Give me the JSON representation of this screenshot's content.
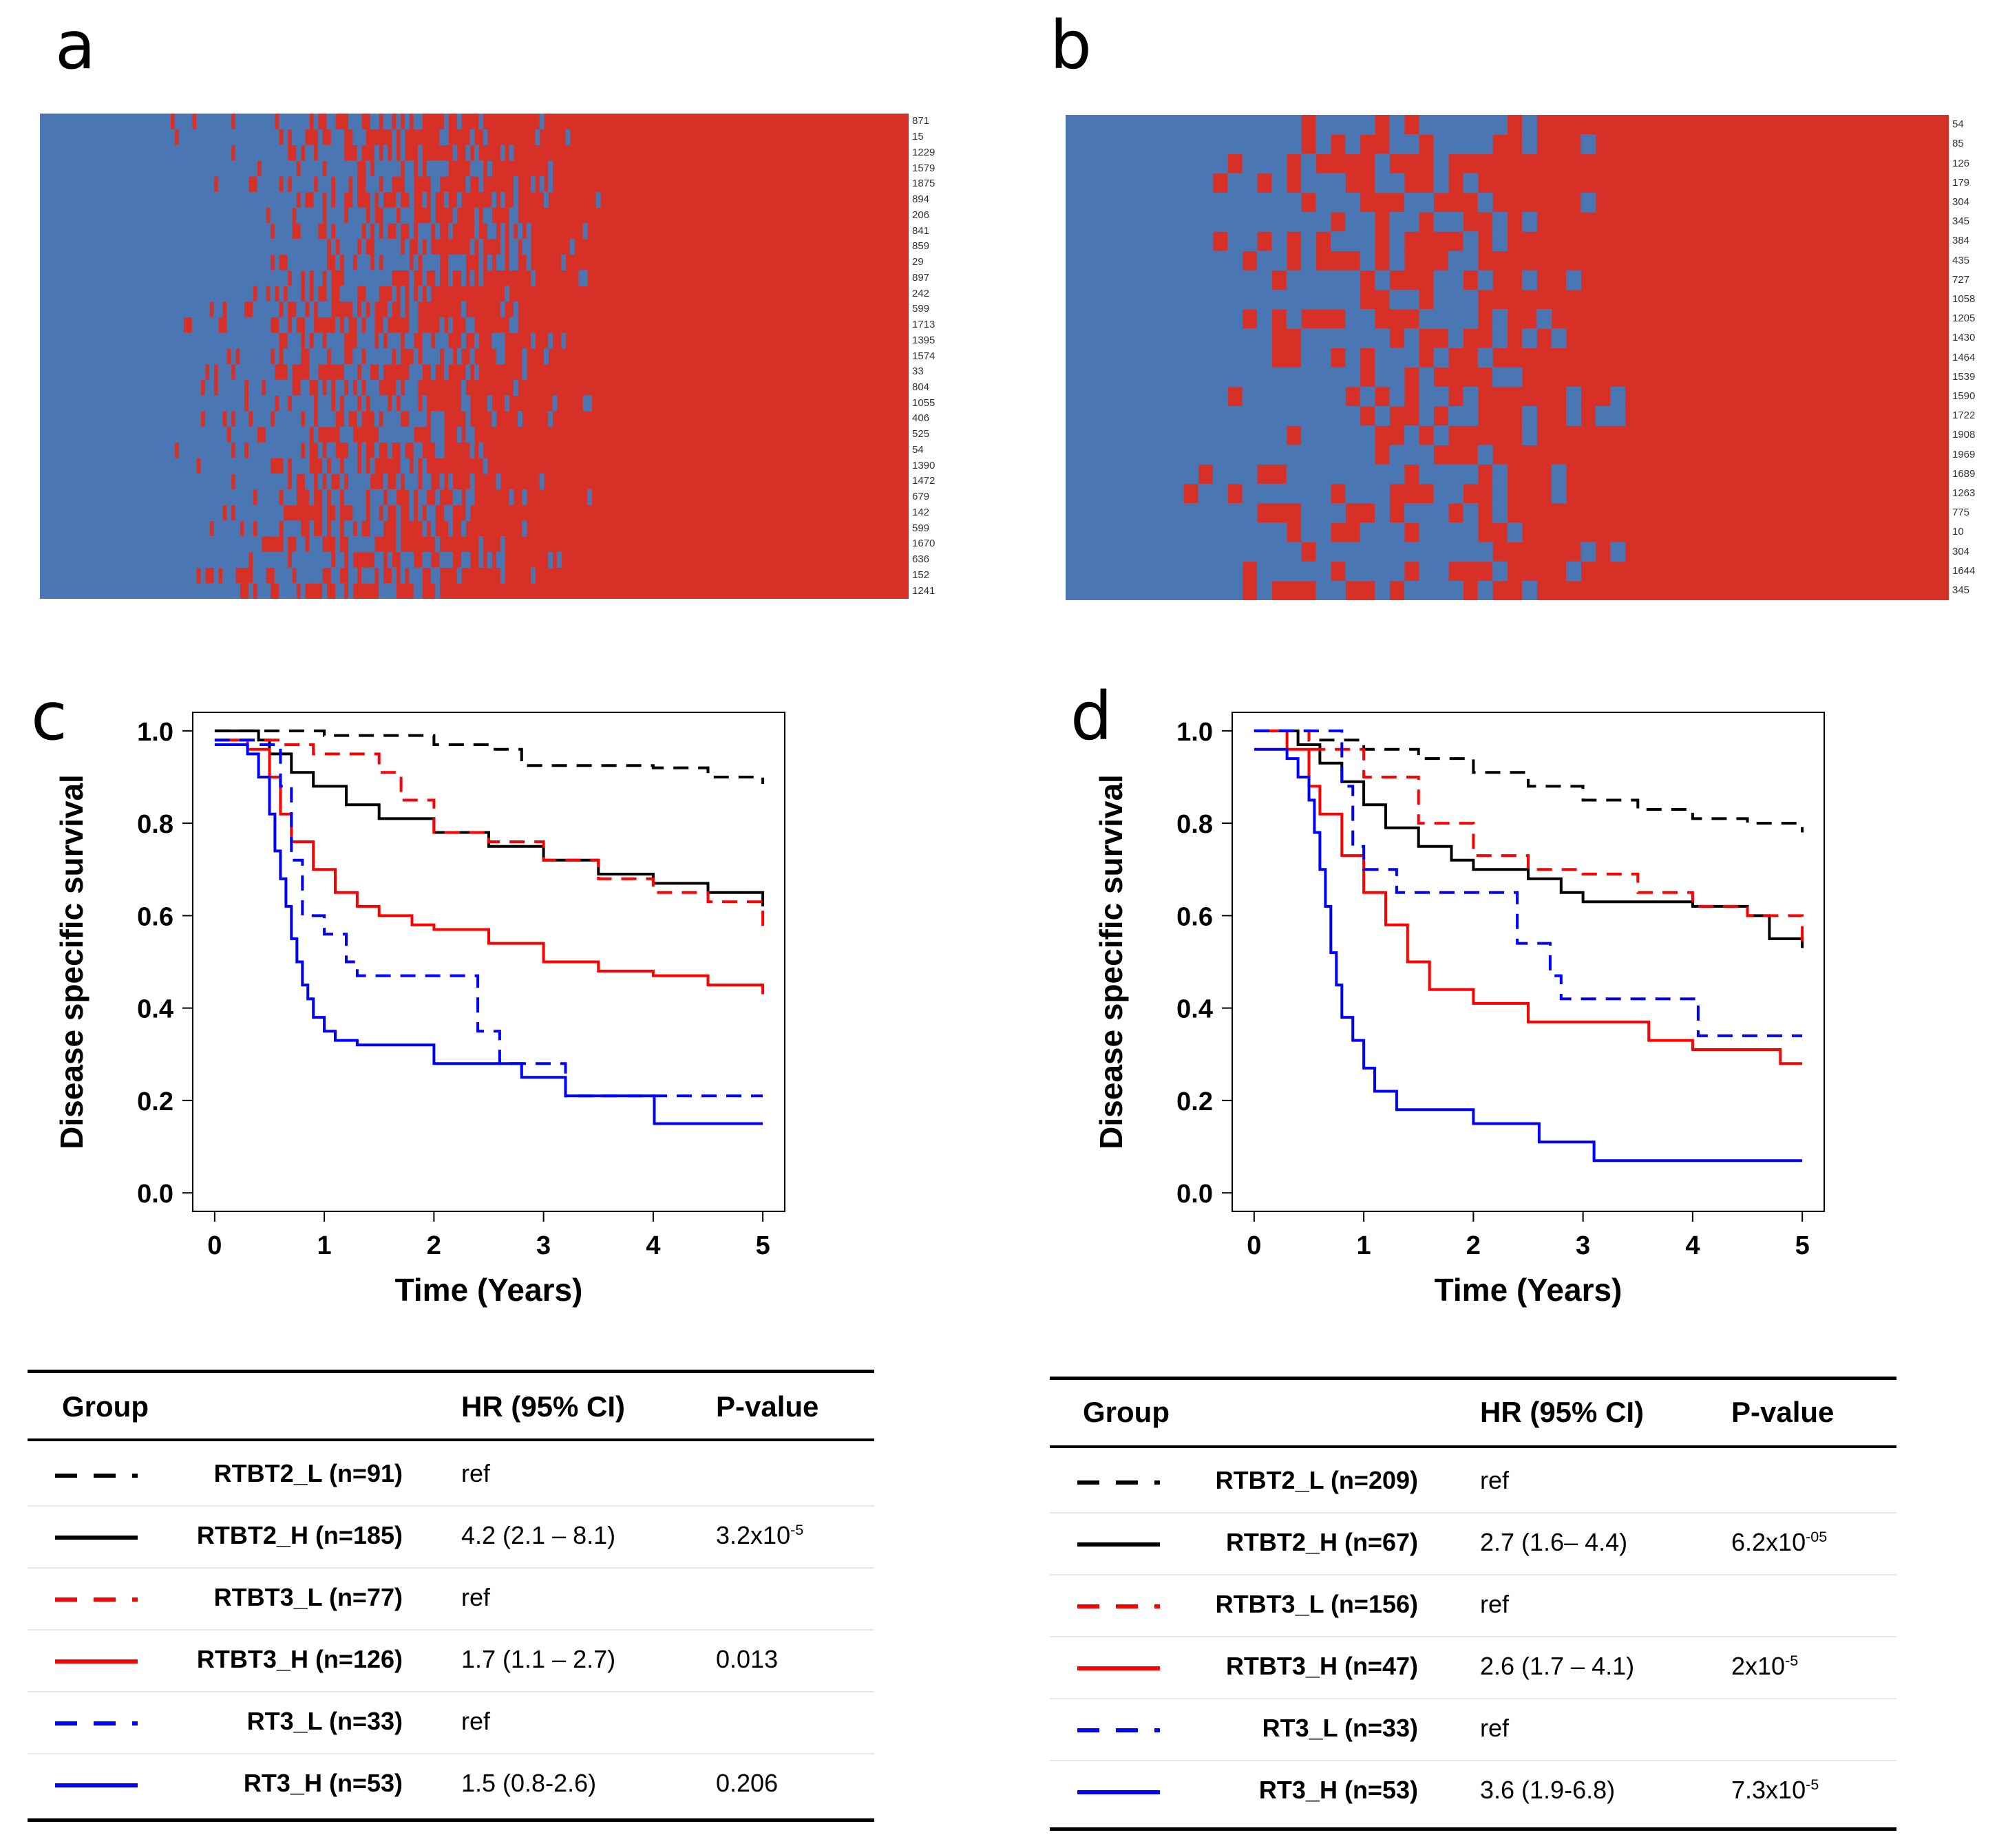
{
  "panels": {
    "a": "a",
    "b": "b",
    "c": "c",
    "d": "d"
  },
  "colors": {
    "blue": "#4a77b4",
    "red": "#d73027",
    "black": "#000000",
    "curve_red": "#ff0000",
    "curve_blue": "#0000ff"
  },
  "heatmap_a": {
    "row_labels": [
      "871",
      "15",
      "1229",
      "1579",
      "1875",
      "894",
      "206",
      "841",
      "859",
      "29",
      "897",
      "242",
      "599",
      "1713",
      "1395",
      "1574",
      "33",
      "804",
      "1055",
      "406",
      "525",
      "54",
      "1390",
      "1472",
      "679",
      "142",
      "599",
      "1670",
      "636",
      "152",
      "1241"
    ]
  },
  "heatmap_b": {
    "row_labels": [
      "54",
      "85",
      "126",
      "179",
      "304",
      "345",
      "384",
      "435",
      "727",
      "1058",
      "1205",
      "1430",
      "1464",
      "1539",
      "1590",
      "1722",
      "1908",
      "1969",
      "1689",
      "1263",
      "775",
      "10",
      "304",
      "1644",
      "345"
    ]
  },
  "chart_data": [
    {
      "type": "line",
      "panel": "c",
      "xlabel": "Time (Years)",
      "ylabel": "Disease specific survival",
      "xlim": [
        0,
        5
      ],
      "ylim": [
        0,
        1
      ],
      "xticks": [
        "0",
        "1",
        "2",
        "3",
        "4",
        "5"
      ],
      "yticks": [
        "0.0",
        "0.2",
        "0.4",
        "0.6",
        "0.8",
        "1.0"
      ],
      "series": [
        {
          "name": "RTBT2_L (n=91)",
          "color": "#000000",
          "dash": true,
          "x": [
            0,
            0.5,
            1,
            1.5,
            2,
            2.5,
            2.8,
            3.5,
            4,
            4.5,
            5
          ],
          "y": [
            1,
            1,
            0.99,
            0.99,
            0.97,
            0.96,
            0.925,
            0.925,
            0.92,
            0.9,
            0.885
          ]
        },
        {
          "name": "RTBT2_H (n=185)",
          "color": "#000000",
          "dash": false,
          "x": [
            0,
            0.4,
            0.5,
            0.7,
            0.9,
            1.2,
            1.5,
            2,
            2.5,
            3,
            3.5,
            4,
            4.5,
            5
          ],
          "y": [
            1,
            0.98,
            0.95,
            0.91,
            0.88,
            0.84,
            0.81,
            0.78,
            0.75,
            0.72,
            0.69,
            0.67,
            0.65,
            0.62
          ]
        },
        {
          "name": "RTBT3_L (n=77)",
          "color": "#ff0000",
          "dash": true,
          "x": [
            0,
            0.3,
            0.6,
            0.9,
            1.2,
            1.5,
            1.7,
            2,
            2.5,
            3,
            3.5,
            4,
            4.5,
            5
          ],
          "y": [
            0.98,
            0.98,
            0.97,
            0.95,
            0.95,
            0.91,
            0.85,
            0.78,
            0.76,
            0.72,
            0.68,
            0.65,
            0.63,
            0.57
          ]
        },
        {
          "name": "RTBT3_H (n=126)",
          "color": "#ff0000",
          "dash": false,
          "x": [
            0,
            0.3,
            0.5,
            0.6,
            0.7,
            0.9,
            1.1,
            1.3,
            1.5,
            1.8,
            2,
            2.5,
            3,
            3.5,
            4,
            4.5,
            5
          ],
          "y": [
            0.98,
            0.96,
            0.9,
            0.82,
            0.76,
            0.7,
            0.65,
            0.62,
            0.6,
            0.58,
            0.57,
            0.54,
            0.5,
            0.48,
            0.47,
            0.45,
            0.43
          ]
        },
        {
          "name": "RT3_L (n=33)",
          "color": "#0000ff",
          "dash": true,
          "x": [
            0,
            0.4,
            0.6,
            0.7,
            0.8,
            1,
            1.2,
            1.3,
            2.3,
            2.4,
            2.6,
            3.1,
            3.2,
            5
          ],
          "y": [
            0.98,
            0.97,
            0.88,
            0.72,
            0.6,
            0.56,
            0.5,
            0.47,
            0.47,
            0.35,
            0.28,
            0.28,
            0.21,
            0.21
          ]
        },
        {
          "name": "RT3_H (n=53)",
          "color": "#0000ff",
          "dash": false,
          "x": [
            0,
            0.3,
            0.4,
            0.5,
            0.55,
            0.6,
            0.65,
            0.7,
            0.75,
            0.8,
            0.85,
            0.9,
            1,
            1.1,
            1.3,
            2,
            2.8,
            3.2,
            4,
            4.01,
            5
          ],
          "y": [
            0.97,
            0.95,
            0.9,
            0.82,
            0.74,
            0.68,
            0.62,
            0.55,
            0.5,
            0.45,
            0.42,
            0.38,
            0.35,
            0.33,
            0.32,
            0.28,
            0.25,
            0.21,
            0.21,
            0.15,
            0.15
          ]
        }
      ]
    },
    {
      "type": "line",
      "panel": "d",
      "xlabel": "Time (Years)",
      "ylabel": "Disease specific survival",
      "xlim": [
        0,
        5
      ],
      "ylim": [
        0,
        1
      ],
      "xticks": [
        "0",
        "1",
        "2",
        "3",
        "4",
        "5"
      ],
      "yticks": [
        "0.0",
        "0.2",
        "0.4",
        "0.6",
        "0.8",
        "1.0"
      ],
      "series": [
        {
          "name": "RTBT2_L (n=209)",
          "color": "#000000",
          "dash": true,
          "x": [
            0,
            0.5,
            1,
            1.5,
            2,
            2.5,
            3,
            3.5,
            4,
            4.5,
            5
          ],
          "y": [
            1,
            0.98,
            0.96,
            0.94,
            0.91,
            0.88,
            0.85,
            0.83,
            0.81,
            0.8,
            0.78
          ]
        },
        {
          "name": "RTBT2_H (n=67)",
          "color": "#000000",
          "dash": false,
          "x": [
            0,
            0.4,
            0.6,
            0.8,
            1,
            1.2,
            1.5,
            1.8,
            2,
            2.5,
            2.8,
            3,
            3.5,
            4,
            4.5,
            4.7,
            5
          ],
          "y": [
            1,
            0.97,
            0.93,
            0.89,
            0.84,
            0.79,
            0.75,
            0.72,
            0.7,
            0.68,
            0.65,
            0.63,
            0.63,
            0.62,
            0.6,
            0.55,
            0.53
          ]
        },
        {
          "name": "RTBT3_L (n=156)",
          "color": "#ff0000",
          "dash": true,
          "x": [
            0,
            0.5,
            1,
            1.5,
            2,
            2.5,
            3,
            3.5,
            4,
            4.5,
            5
          ],
          "y": [
            1,
            0.96,
            0.9,
            0.8,
            0.73,
            0.7,
            0.69,
            0.65,
            0.62,
            0.6,
            0.53
          ]
        },
        {
          "name": "RTBT3_H (n=47)",
          "color": "#ff0000",
          "dash": false,
          "x": [
            0,
            0.3,
            0.5,
            0.6,
            0.8,
            1,
            1.2,
            1.4,
            1.6,
            2,
            2.5,
            3,
            3.6,
            4,
            4.8,
            5
          ],
          "y": [
            1,
            0.96,
            0.88,
            0.82,
            0.73,
            0.65,
            0.58,
            0.5,
            0.44,
            0.41,
            0.37,
            0.37,
            0.33,
            0.31,
            0.28,
            0.28
          ]
        },
        {
          "name": "RT3_L (n=33)",
          "color": "#0000ff",
          "dash": true,
          "x": [
            0,
            0.7,
            0.8,
            0.9,
            1,
            1.3,
            2.3,
            2.4,
            2.7,
            2.8,
            4,
            4.05,
            5
          ],
          "y": [
            1,
            1,
            0.88,
            0.75,
            0.7,
            0.65,
            0.65,
            0.54,
            0.47,
            0.42,
            0.42,
            0.34,
            0.34
          ]
        },
        {
          "name": "RT3_H (n=53)",
          "color": "#0000ff",
          "dash": false,
          "x": [
            0,
            0.3,
            0.4,
            0.5,
            0.55,
            0.6,
            0.65,
            0.7,
            0.75,
            0.8,
            0.9,
            1,
            1.1,
            1.3,
            2,
            2.6,
            3,
            3.1,
            5
          ],
          "y": [
            0.96,
            0.94,
            0.9,
            0.85,
            0.78,
            0.7,
            0.62,
            0.52,
            0.45,
            0.38,
            0.33,
            0.27,
            0.22,
            0.18,
            0.15,
            0.11,
            0.11,
            0.07,
            0.07
          ]
        }
      ]
    }
  ],
  "table_c": {
    "headers": {
      "group": "Group",
      "hr": "HR (95% CI)",
      "pvalue": "P-value"
    },
    "rows": [
      {
        "name": "RTBT2_L  (n=91)",
        "hr": "ref",
        "p": "",
        "color": "#000000",
        "dash": true
      },
      {
        "name": "RTBT2_H  (n=185)",
        "hr": "4.2 (2.1 – 8.1)",
        "p": "3.2x10",
        "pexp": "-5",
        "color": "#000000",
        "dash": false
      },
      {
        "name": "RTBT3_L  (n=77)",
        "hr": "ref",
        "p": "",
        "color": "#ff0000",
        "dash": true
      },
      {
        "name": "RTBT3_H  (n=126)",
        "hr": "1.7 (1.1 – 2.7)",
        "p": "0.013",
        "color": "#ff0000",
        "dash": false
      },
      {
        "name": "RT3_L  (n=33)",
        "hr": "ref",
        "p": "",
        "color": "#0000ff",
        "dash": true
      },
      {
        "name": "RT3_H  (n=53)",
        "hr": "1.5 (0.8-2.6)",
        "p": "0.206",
        "color": "#0000ff",
        "dash": false
      }
    ]
  },
  "table_d": {
    "headers": {
      "group": "Group",
      "hr": "HR (95% CI)",
      "pvalue": "P-value"
    },
    "rows": [
      {
        "name": "RTBT2_L  (n=209)",
        "hr": "ref",
        "p": "",
        "color": "#000000",
        "dash": true
      },
      {
        "name": "RTBT2_H  (n=67)",
        "hr": "2.7 (1.6– 4.4)",
        "p": "6.2x10",
        "pexp": "-05",
        "color": "#000000",
        "dash": false
      },
      {
        "name": "RTBT3_L  (n=156)",
        "hr": "ref",
        "p": "",
        "color": "#ff0000",
        "dash": true
      },
      {
        "name": "RTBT3_H  (n=47)",
        "hr": "2.6 (1.7 – 4.1)",
        "p": "2x10",
        "pexp": "-5",
        "color": "#ff0000",
        "dash": false
      },
      {
        "name": "RT3_L  (n=33)",
        "hr": "ref",
        "p": "",
        "color": "#0000ff",
        "dash": true
      },
      {
        "name": "RT3_H  (n=53)",
        "hr": "3.6 (1.9-6.8)",
        "p": "7.3x10",
        "pexp": "-5",
        "color": "#0000ff",
        "dash": false
      }
    ]
  }
}
